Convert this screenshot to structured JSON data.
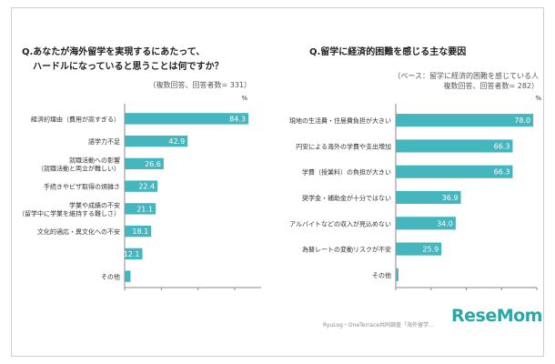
{
  "colors": {
    "bar": "#45b6bd",
    "axis": "#888888",
    "text": "#333333",
    "logo": "#2aa7a7"
  },
  "left_panel": {
    "title_line1": "Q.あなたが海外留学を実現するにあたって、",
    "title_line2": "ハードルになっていると思うことは何ですか？",
    "note_line1": "（複数回答、回答者数= 331）",
    "unit": "%"
  },
  "right_panel": {
    "title_line1": "Q.留学に経済的困難を感じる主な要因",
    "note_line1": "（ベース：留学に経済的困難を感じている人",
    "note_line2": "複数回答、回答者数= 282）",
    "unit": "%"
  },
  "footer": {
    "source": "RyuLog・OneTerrace共同調査「海外留学…",
    "logo": "ReseMom"
  },
  "chart_data": [
    {
      "type": "bar",
      "orientation": "horizontal",
      "categories": [
        [
          "経済的理由（費用が高すぎる）"
        ],
        [
          "語学力不足"
        ],
        [
          "就職活動への影響",
          "（就職活動と両立が難しい）"
        ],
        [
          "手続きやビザ取得の煩雑さ"
        ],
        [
          "学業や成績の不安",
          "（留学中に学業を維持する難しさ）"
        ],
        [
          "文化的適応・異文化への不安"
        ],
        [
          ""
        ],
        [
          "その他"
        ]
      ],
      "values": [
        84.3,
        42.9,
        26.6,
        22.4,
        21.1,
        18.1,
        12.1,
        4.0
      ],
      "value_labels": [
        "84.3",
        "42.9",
        "26.6",
        "22.4",
        "21.1",
        "18.1",
        "12.1",
        ""
      ],
      "xlim": [
        0,
        93
      ],
      "xticks": [
        0,
        25,
        50,
        75
      ],
      "xtick_labels": [
        "0",
        "25",
        "50",
        "75"
      ],
      "grid": false
    },
    {
      "type": "bar",
      "orientation": "horizontal",
      "categories": [
        [
          "現地の生活費・住居費負担が大きい"
        ],
        [
          "円安による海外の学費や支出増加"
        ],
        [
          "学費（授業料）の負担が大きい"
        ],
        [
          "奨学金・補助金が十分ではない"
        ],
        [
          "アルバイトなどの収入が見込めない"
        ],
        [
          "為替レートの変動リスクが不安"
        ],
        [
          "その他"
        ]
      ],
      "values": [
        78.0,
        66.3,
        66.3,
        36.9,
        34.0,
        25.9,
        1.5
      ],
      "value_labels": [
        "78.0",
        "66.3",
        "66.3",
        "36.9",
        "34.0",
        "25.9",
        ""
      ],
      "xlim": [
        0,
        80
      ],
      "xticks": [
        0,
        20,
        40,
        60,
        80
      ],
      "xtick_labels": [
        "0",
        "20.0",
        "40.0",
        "60.0",
        "80.0"
      ],
      "grid": false
    }
  ]
}
